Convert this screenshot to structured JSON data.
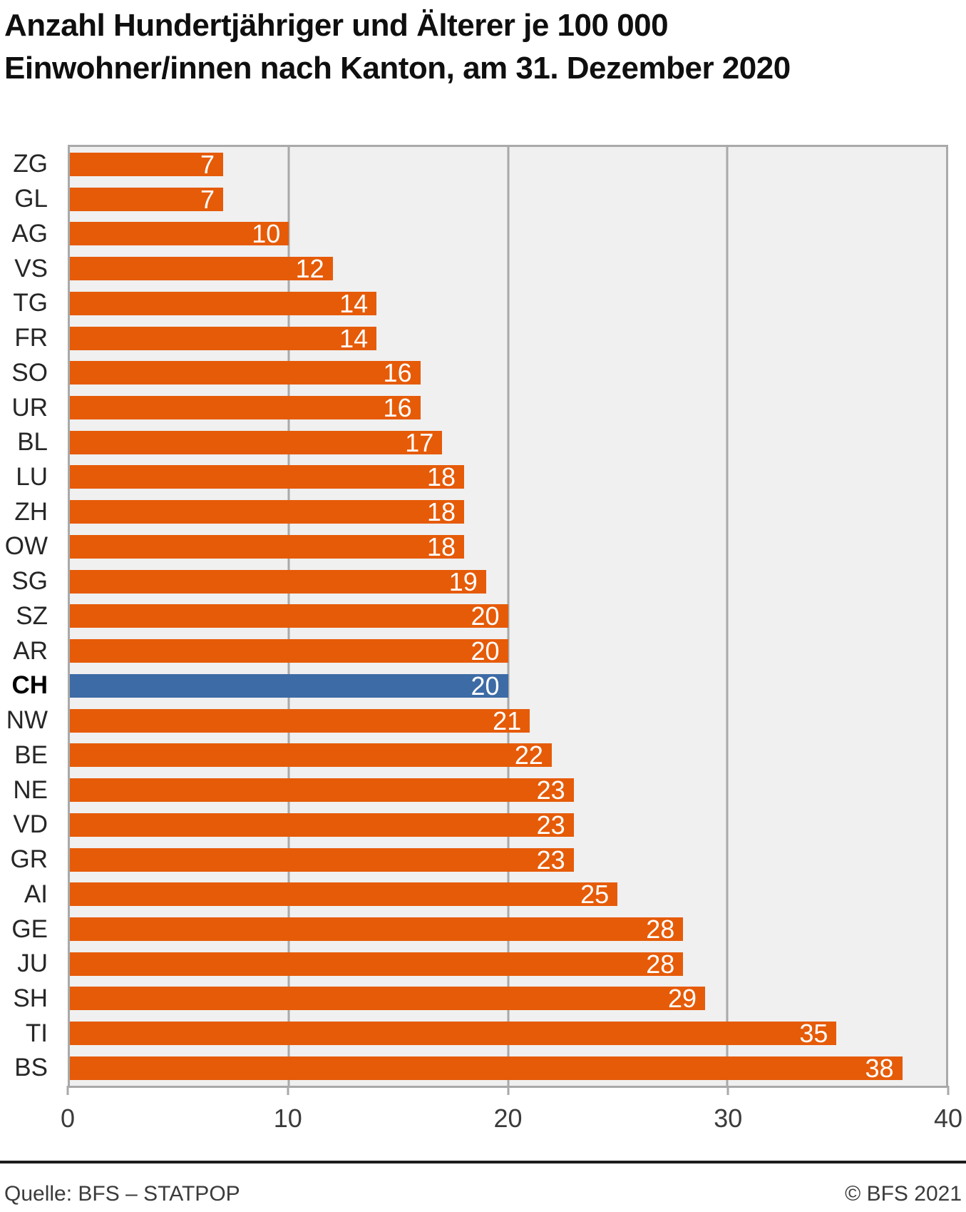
{
  "title": {
    "line1": "Anzahl Hundertjähriger und Älterer je 100 000",
    "line2": "Einwohner/innen nach Kanton, am 31. Dezember 2020"
  },
  "chart_data": {
    "type": "bar",
    "orientation": "horizontal",
    "categories": [
      "ZG",
      "GL",
      "AG",
      "VS",
      "TG",
      "FR",
      "SO",
      "UR",
      "BL",
      "LU",
      "ZH",
      "OW",
      "SG",
      "SZ",
      "AR",
      "CH",
      "NW",
      "BE",
      "NE",
      "VD",
      "GR",
      "AI",
      "GE",
      "JU",
      "SH",
      "TI",
      "BS"
    ],
    "values": [
      7,
      7,
      10,
      12,
      14,
      14,
      16,
      16,
      17,
      18,
      18,
      18,
      19,
      20,
      20,
      20,
      21,
      22,
      23,
      23,
      23,
      25,
      28,
      28,
      29,
      35,
      38
    ],
    "highlight_category": "CH",
    "xlim": [
      0,
      40
    ],
    "x_ticks": [
      0,
      10,
      20,
      30,
      40
    ],
    "grid_ticks": [
      10,
      20,
      30
    ],
    "colors": {
      "bar": "#e65b08",
      "highlight": "#3d6ba5",
      "plot_bg": "#f0f0f0",
      "grid": "#a9a9a9",
      "value_label": "#ffffff"
    },
    "legend": null,
    "grid": "vertical-major"
  },
  "footer": {
    "source": "Quelle: BFS – STATPOP",
    "copyright": "© BFS 2021"
  }
}
